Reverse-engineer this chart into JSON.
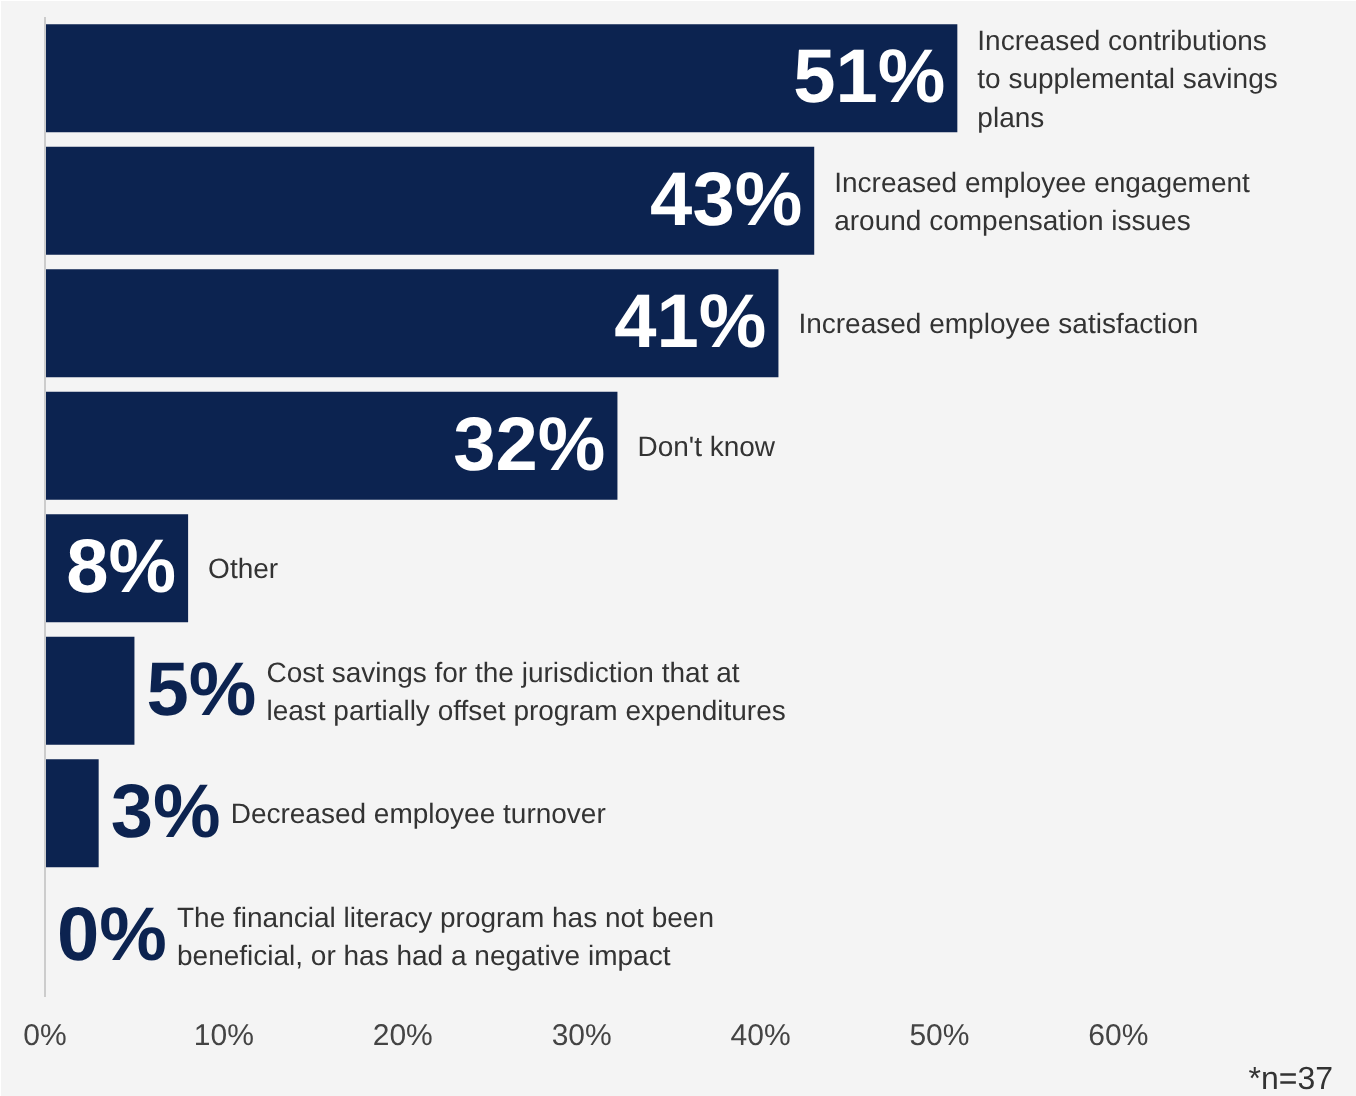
{
  "chart_data": {
    "type": "bar",
    "orientation": "horizontal",
    "categories": [
      "Increased contributions to supplemental savings plans",
      "Increased employee engagement around compensation issues",
      "Increased employee satisfaction",
      "Don't know",
      "Other",
      "Cost savings for the jurisdiction that at least partially offset program expenditures",
      "Decreased employee turnover",
      "The financial literacy program has not been beneficial, or has had a negative impact"
    ],
    "values": [
      51,
      43,
      41,
      32,
      8,
      5,
      3,
      0
    ],
    "value_labels": [
      "51%",
      "43%",
      "41%",
      "32%",
      "8%",
      "5%",
      "3%",
      "0%"
    ],
    "color": "#0c2350",
    "xlim": [
      0,
      72
    ],
    "xticks": [
      {
        "value": 0,
        "label": "0%"
      },
      {
        "value": 10,
        "label": "10%"
      },
      {
        "value": 20,
        "label": "20%"
      },
      {
        "value": 30,
        "label": "30%"
      },
      {
        "value": 40,
        "label": "40%"
      },
      {
        "value": 50,
        "label": "50%"
      },
      {
        "value": 60,
        "label": "60%"
      }
    ],
    "tick_labels": "x",
    "grid": false,
    "annotations": [
      "*n=37"
    ]
  }
}
